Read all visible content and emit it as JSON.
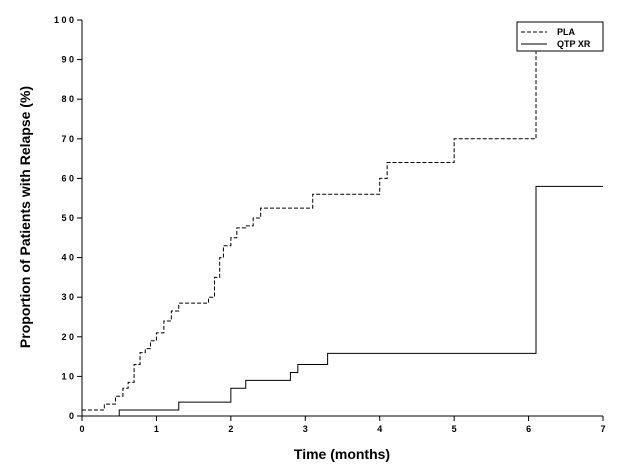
{
  "chart_data": {
    "type": "line",
    "step": true,
    "xlabel": "Time (months)",
    "ylabel": "Proportion of Patients with Relapse (%)",
    "xlim": [
      0,
      7
    ],
    "ylim": [
      0,
      100
    ],
    "x_ticks": [
      0,
      1,
      2,
      3,
      4,
      5,
      6,
      7
    ],
    "y_ticks": [
      0,
      10,
      20,
      30,
      40,
      50,
      60,
      70,
      80,
      90,
      100
    ],
    "x_tick_labels": [
      "0",
      "1",
      "2",
      "3",
      "4",
      "5",
      "6",
      "7"
    ],
    "y_tick_labels": [
      "0",
      "1 0",
      "2 0",
      "3 0",
      "4 0",
      "5 0",
      "6 0",
      "7 0",
      "8 0",
      "9 0",
      "1 0 0"
    ],
    "grid": false,
    "legend_position": "top-right",
    "series": [
      {
        "name": "PLA",
        "line_style": "dashed",
        "color": "#000000",
        "points": [
          [
            0,
            1.5
          ],
          [
            0.3,
            3
          ],
          [
            0.45,
            5
          ],
          [
            0.55,
            7
          ],
          [
            0.62,
            8.5
          ],
          [
            0.7,
            13
          ],
          [
            0.78,
            16
          ],
          [
            0.85,
            17
          ],
          [
            0.92,
            19
          ],
          [
            1.0,
            21
          ],
          [
            1.1,
            24
          ],
          [
            1.2,
            26.5
          ],
          [
            1.3,
            28.5
          ],
          [
            1.7,
            30
          ],
          [
            1.78,
            35
          ],
          [
            1.85,
            40
          ],
          [
            1.9,
            43
          ],
          [
            2.0,
            45
          ],
          [
            2.08,
            47.5
          ],
          [
            2.2,
            48
          ],
          [
            2.3,
            50
          ],
          [
            2.4,
            52.5
          ],
          [
            3.1,
            56
          ],
          [
            4.0,
            60
          ],
          [
            4.1,
            64
          ],
          [
            5.0,
            70
          ],
          [
            6.1,
            92
          ]
        ],
        "x_end": 6.1
      },
      {
        "name": "QTP XR",
        "line_style": "solid",
        "color": "#000000",
        "points": [
          [
            0,
            0
          ],
          [
            0.5,
            1.5
          ],
          [
            1.3,
            3.5
          ],
          [
            2.0,
            7
          ],
          [
            2.2,
            9
          ],
          [
            2.8,
            11
          ],
          [
            2.9,
            13
          ],
          [
            3.3,
            15.8
          ],
          [
            6.1,
            58
          ],
          [
            7.0,
            58
          ]
        ],
        "x_end": 7.0
      }
    ]
  }
}
